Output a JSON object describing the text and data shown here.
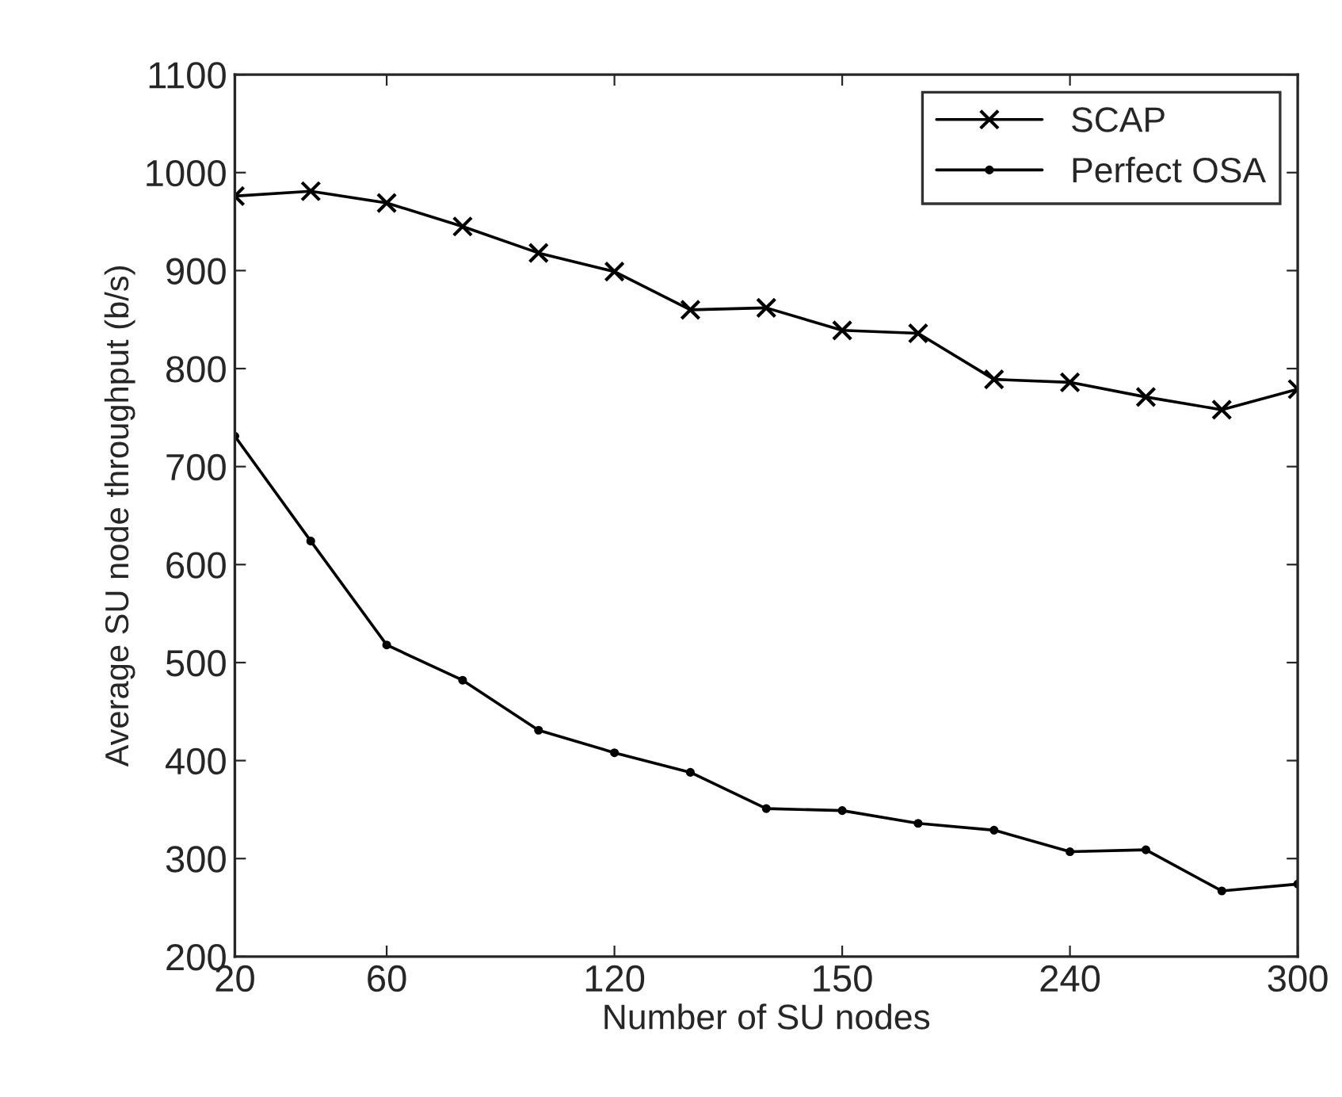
{
  "chart_data": {
    "type": "line",
    "xlabel": "Number of SU nodes",
    "ylabel": "Average SU node throughput (b/s)",
    "categories": [
      "20",
      null,
      "60",
      null,
      null,
      "120",
      null,
      null,
      "150",
      null,
      null,
      "240",
      null,
      null,
      "300"
    ],
    "series": [
      {
        "name": "SCAP",
        "color": "#000000",
        "marker": "cross",
        "values": [
          976,
          981,
          969,
          945,
          918,
          899,
          860,
          862,
          839,
          836,
          789,
          786,
          771,
          758,
          779
        ]
      },
      {
        "name": "Perfect OSA",
        "color": "#000000",
        "marker": "circle",
        "values": [
          731,
          624,
          518,
          482,
          431,
          408,
          388,
          351,
          349,
          336,
          329,
          307,
          309,
          267,
          274
        ]
      }
    ],
    "ylim": [
      200,
      1100
    ],
    "yticks": [
      200,
      300,
      400,
      500,
      600,
      700,
      800,
      900,
      1000,
      1100
    ],
    "grid": false,
    "legend": "top right",
    "line_style": "solid"
  }
}
